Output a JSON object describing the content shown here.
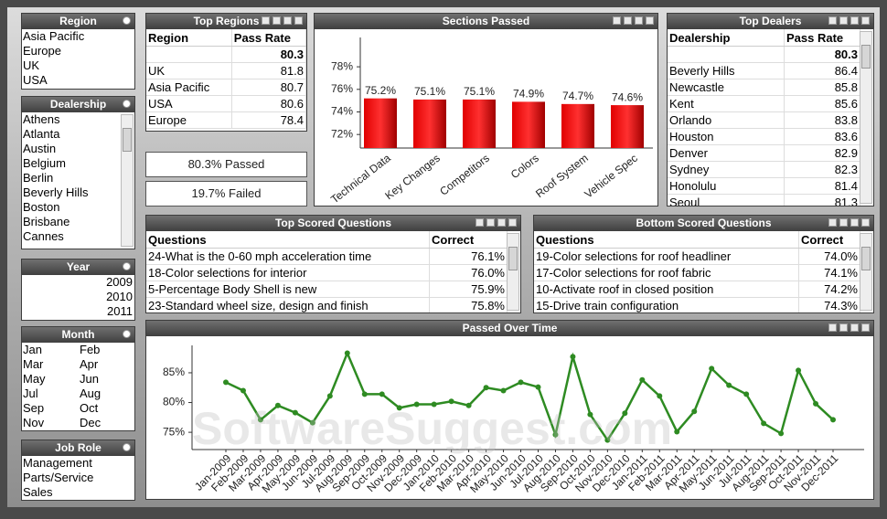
{
  "list_boxes": [
    {
      "title": "Region",
      "items": [
        "Asia Pacific",
        "Europe",
        "UK",
        "USA"
      ]
    },
    {
      "title": "Dealership",
      "items": [
        "Athens",
        "Atlanta",
        "Austin",
        "Belgium",
        "Berlin",
        "Beverly Hills",
        "Boston",
        "Brisbane",
        "Cannes"
      ]
    },
    {
      "title": "Year",
      "items": [
        "2009",
        "2010",
        "2011"
      ]
    },
    {
      "title": "Month",
      "items": [
        "Jan",
        "Feb",
        "Mar",
        "Apr",
        "May",
        "Jun",
        "Jul",
        "Aug",
        "Sep",
        "Oct",
        "Nov",
        "Dec"
      ]
    },
    {
      "title": "Job Role",
      "items": [
        "Management",
        "Parts/Service",
        "Sales"
      ]
    }
  ],
  "top_regions": {
    "title": "Top Regions",
    "columns": [
      "Region",
      "Pass Rate"
    ],
    "total": 80.3,
    "rows": [
      [
        "UK",
        81.8
      ],
      [
        "Asia Pacific",
        80.7
      ],
      [
        "USA",
        80.6
      ],
      [
        "Europe",
        78.4
      ]
    ]
  },
  "summary": [
    "80.3% Passed",
    "19.7% Failed"
  ],
  "top_dealers": {
    "title": "Top Dealers",
    "columns": [
      "Dealership",
      "Pass Rate"
    ],
    "total": 80.3,
    "rows": [
      [
        "Beverly Hills",
        86.4
      ],
      [
        "Newcastle",
        85.8
      ],
      [
        "Kent",
        85.6
      ],
      [
        "Orlando",
        83.8
      ],
      [
        "Houston",
        83.6
      ],
      [
        "Denver",
        82.9
      ],
      [
        "Sydney",
        82.3
      ],
      [
        "Honolulu",
        81.4
      ],
      [
        "Seoul",
        81.3
      ]
    ]
  },
  "top_questions": {
    "title": "Top Scored Questions",
    "columns": [
      "Questions",
      "Correct"
    ],
    "rows": [
      [
        "24-What is the 0-60 mph acceleration time",
        "76.1%"
      ],
      [
        "18-Color selections for interior",
        "76.0%"
      ],
      [
        "5-Percentage Body Shell is new",
        "75.9%"
      ],
      [
        "23-Standard wheel size, design and finish",
        "75.8%"
      ]
    ]
  },
  "bottom_questions": {
    "title": "Bottom Scored Questions",
    "columns": [
      "Questions",
      "Correct"
    ],
    "rows": [
      [
        "19-Color selections for roof headliner",
        "74.0%"
      ],
      [
        "17-Color selections for roof fabric",
        "74.1%"
      ],
      [
        "10-Activate roof in closed position",
        "74.2%"
      ],
      [
        "15-Drive train configuration",
        "74.3%"
      ]
    ]
  },
  "chart_data": [
    {
      "type": "bar",
      "title": "Sections Passed",
      "categories": [
        "Technical Data",
        "Key Changes",
        "Competitors",
        "Colors",
        "Roof System",
        "Vehicle Spec"
      ],
      "values": [
        75.2,
        75.1,
        75.1,
        74.9,
        74.7,
        74.6
      ],
      "value_labels": [
        "75.2%",
        "75.1%",
        "75.1%",
        "74.9%",
        "74.7%",
        "74.6%"
      ],
      "color": "#e00000",
      "ylim": [
        70.8,
        80.6
      ],
      "yticks": [
        {
          "value": 72,
          "label": "72%"
        },
        {
          "value": 74,
          "label": "74%"
        },
        {
          "value": 76,
          "label": "76%"
        },
        {
          "value": 78,
          "label": "78%"
        }
      ]
    },
    {
      "type": "line",
      "title": "Passed Over Time",
      "categories": [
        "Jan-2009",
        "Feb-2009",
        "Mar-2009",
        "Apr-2009",
        "May-2009",
        "Jun-2009",
        "Jul-2009",
        "Aug-2009",
        "Sep-2009",
        "Oct-2009",
        "Nov-2009",
        "Dec-2009",
        "Jan-2010",
        "Feb-2010",
        "Mar-2010",
        "Apr-2010",
        "May-2010",
        "Jun-2010",
        "Jul-2010",
        "Aug-2010",
        "Sep-2010",
        "Oct-2010",
        "Nov-2010",
        "Dec-2010",
        "Jan-2011",
        "Feb-2011",
        "Mar-2011",
        "Apr-2011",
        "May-2011",
        "Jun-2011",
        "Jul-2011",
        "Aug-2011",
        "Sep-2011",
        "Oct-2011",
        "Nov-2011",
        "Dec-2011"
      ],
      "values": [
        83.4,
        82.0,
        77.1,
        79.5,
        78.3,
        76.6,
        81.1,
        88.3,
        81.4,
        81.4,
        79.1,
        79.7,
        79.7,
        80.2,
        79.5,
        82.5,
        82.0,
        83.4,
        82.6,
        74.6,
        87.7,
        78.0,
        73.7,
        78.2,
        83.8,
        81.1,
        75.1,
        78.5,
        85.7,
        82.9,
        81.4,
        76.5,
        74.8,
        85.4,
        79.8,
        77.1
      ],
      "color": "#2e8b22",
      "ylim": [
        72.1,
        89.6
      ],
      "yticks": [
        {
          "value": 75,
          "label": "75%"
        },
        {
          "value": 80,
          "label": "80%"
        },
        {
          "value": 85,
          "label": "85%"
        }
      ]
    }
  ],
  "watermark": "SoftwareSuggest.com"
}
